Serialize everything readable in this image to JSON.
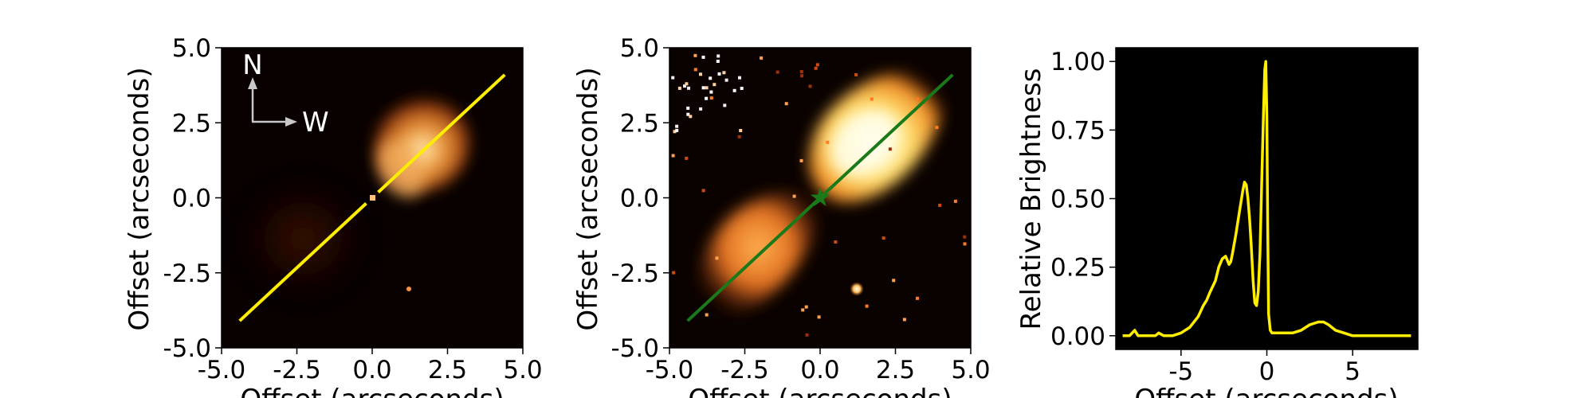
{
  "chart_data": [
    {
      "type": "heatmap",
      "panel": "left",
      "xlabel": "Offset (arcseconds)",
      "ylabel": "Offset (arcseconds)",
      "xlim": [
        -5.0,
        5.0
      ],
      "ylim": [
        -5.0,
        5.0
      ],
      "xticks": [
        "-5.0",
        "-2.5",
        "0.0",
        "2.5",
        "5.0"
      ],
      "yticks": [
        "5.0",
        "2.5",
        "0.0",
        "-2.5",
        "-5.0"
      ],
      "xtick_values": [
        -5.0,
        -2.5,
        0.0,
        2.5,
        5.0
      ],
      "ytick_values": [
        5.0,
        2.5,
        0.0,
        -2.5,
        -5.0
      ],
      "compass": {
        "north": "N",
        "west": "W"
      },
      "cut_line": {
        "x": [
          -4.4,
          4.4
        ],
        "y": [
          -4.1,
          4.1
        ],
        "gap": [
          -0.2,
          0.2
        ],
        "color": "#ffee00"
      },
      "colormap": "afmhot"
    },
    {
      "type": "heatmap",
      "panel": "middle",
      "xlabel": "Offset (arcseconds)",
      "ylabel": "Offset (arcseconds)",
      "xlim": [
        -5.0,
        5.0
      ],
      "ylim": [
        -5.0,
        5.0
      ],
      "xticks": [
        "-5.0",
        "-2.5",
        "0.0",
        "2.5",
        "5.0"
      ],
      "yticks": [
        "5.0",
        "2.5",
        "0.0",
        "-2.5",
        "-5.0"
      ],
      "xtick_values": [
        -5.0,
        -2.5,
        0.0,
        2.5,
        5.0
      ],
      "ytick_values": [
        5.0,
        2.5,
        0.0,
        -2.5,
        -5.0
      ],
      "cut_line": {
        "x": [
          -4.4,
          4.4
        ],
        "y": [
          -4.1,
          4.1
        ],
        "color": "#1a7a1a"
      },
      "star_marker": {
        "x": 0.0,
        "y": 0.0,
        "color": "#1a7a1a"
      },
      "colormap": "afmhot"
    },
    {
      "type": "line",
      "panel": "right",
      "xlabel": "Offset (arcseconds)",
      "ylabel": "Relative Brightness",
      "xlim": [
        -8.8,
        8.8
      ],
      "ylim": [
        -0.05,
        1.05
      ],
      "xticks": [
        "-5",
        "0",
        "5"
      ],
      "yticks": [
        "1.00",
        "0.75",
        "0.50",
        "0.25",
        "0.00"
      ],
      "xtick_values": [
        -5,
        0,
        5
      ],
      "ytick_values": [
        1.0,
        0.75,
        0.5,
        0.25,
        0.0
      ],
      "background": "#000000",
      "series": [
        {
          "color": "#ffee00",
          "x": [
            -8.4,
            -8.0,
            -7.7,
            -7.5,
            -7.3,
            -7.0,
            -6.5,
            -6.3,
            -6.0,
            -5.5,
            -5.0,
            -4.5,
            -4.0,
            -3.7,
            -3.5,
            -3.3,
            -3.0,
            -2.8,
            -2.6,
            -2.4,
            -2.2,
            -2.1,
            -2.0,
            -1.8,
            -1.6,
            -1.4,
            -1.3,
            -1.2,
            -1.1,
            -1.0,
            -0.9,
            -0.8,
            -0.7,
            -0.6,
            -0.5,
            -0.4,
            -0.3,
            -0.2,
            -0.12,
            -0.06,
            0.0,
            0.05,
            0.1,
            0.2,
            0.3,
            0.5,
            1.0,
            1.5,
            2.0,
            2.5,
            3.0,
            3.3,
            3.6,
            4.0,
            4.5,
            5.0,
            6.0,
            7.0,
            8.4
          ],
          "y": [
            0.0,
            0.0,
            0.02,
            0.0,
            0.0,
            0.0,
            0.0,
            0.01,
            0.0,
            0.0,
            0.01,
            0.03,
            0.07,
            0.11,
            0.13,
            0.16,
            0.2,
            0.25,
            0.28,
            0.29,
            0.26,
            0.27,
            0.3,
            0.37,
            0.45,
            0.53,
            0.56,
            0.55,
            0.5,
            0.42,
            0.32,
            0.2,
            0.12,
            0.11,
            0.16,
            0.3,
            0.55,
            0.8,
            0.97,
            1.0,
            0.8,
            0.4,
            0.08,
            0.02,
            0.01,
            0.01,
            0.01,
            0.01,
            0.02,
            0.04,
            0.05,
            0.05,
            0.04,
            0.02,
            0.01,
            0.0,
            0.0,
            0.0,
            0.0
          ]
        }
      ]
    }
  ]
}
